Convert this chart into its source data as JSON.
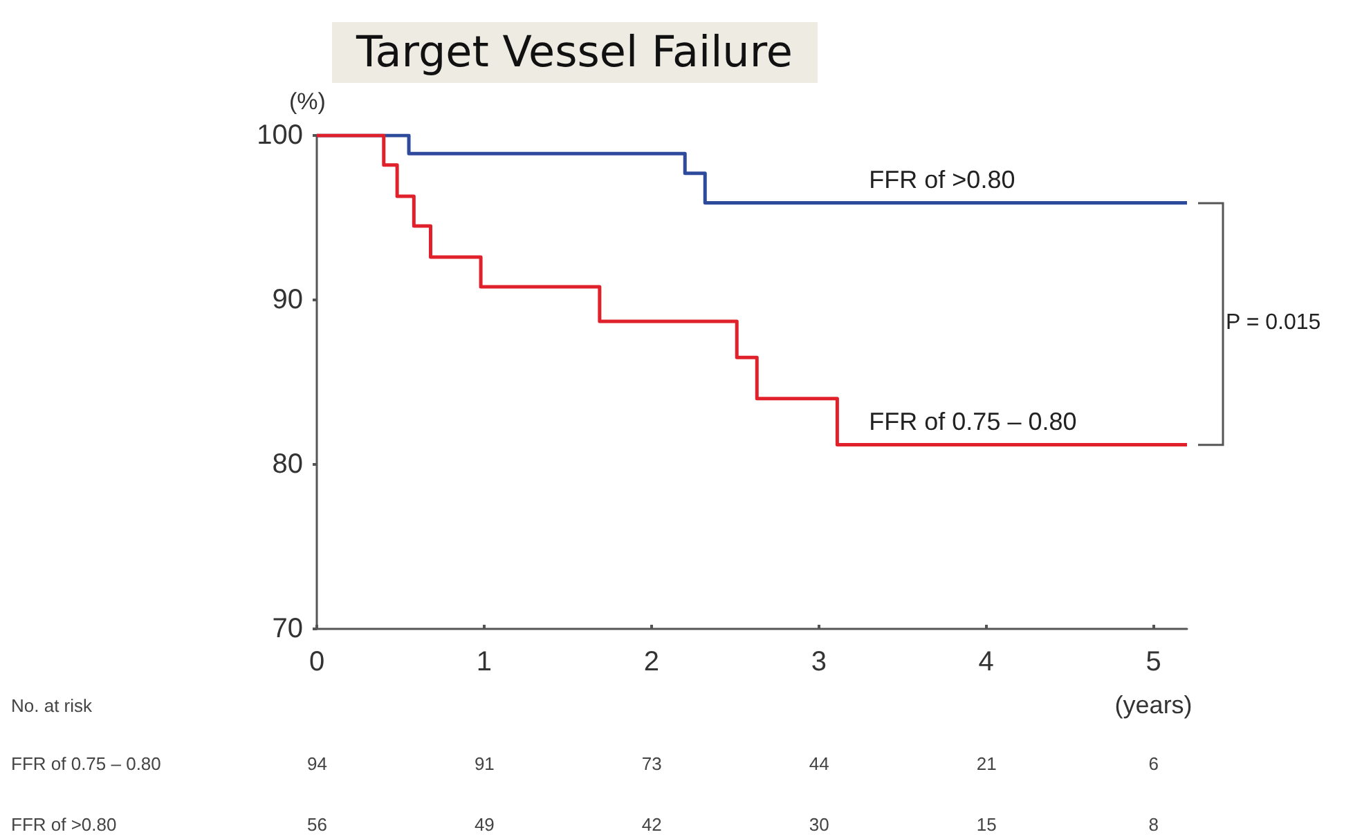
{
  "chart_data": {
    "type": "step",
    "title": "Target Vessel Failure",
    "xlabel": "(years)",
    "ylabel": "(%)",
    "xlim": [
      0,
      5.2
    ],
    "xticks": [
      0,
      1,
      2,
      3,
      4,
      5
    ],
    "ylim": [
      70,
      100
    ],
    "yticks": [
      70,
      80,
      90,
      100
    ],
    "grid": false,
    "legend": false,
    "marker": "none",
    "line_style": "solid",
    "series": [
      {
        "name": "FFR of >0.80",
        "color": "#2e4a9a",
        "x": [
          0,
          0.55,
          2.2,
          2.32,
          5.2
        ],
        "values": [
          100,
          98.9,
          97.7,
          95.9,
          95.9
        ]
      },
      {
        "name": "FFR of 0.75 – 0.80",
        "color": "#e0202a",
        "x": [
          0,
          0.4,
          0.48,
          0.58,
          0.68,
          0.98,
          1.69,
          2.51,
          2.63,
          3.11,
          5.2
        ],
        "values": [
          100,
          98.2,
          96.3,
          94.5,
          92.6,
          90.8,
          88.7,
          86.5,
          84.0,
          81.2,
          81.2
        ]
      }
    ],
    "annotations": [
      "P = 0.015",
      "No. at risk",
      "FFR of 0.75 – 0.80",
      "94",
      "91",
      "73",
      "44",
      "21",
      "6",
      "FFR of >0.80",
      "56",
      "49",
      "42",
      "30",
      "15",
      "8"
    ]
  }
}
